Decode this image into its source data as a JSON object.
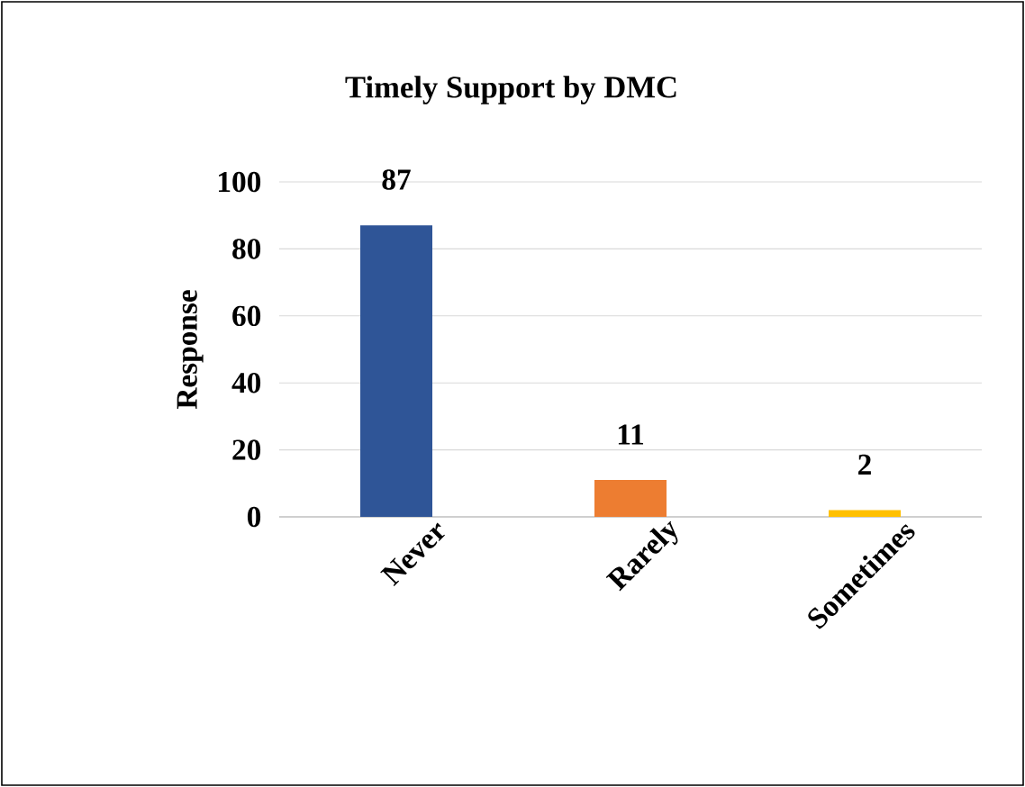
{
  "chart_data": {
    "type": "bar",
    "title": "Timely Support by DMC",
    "ylabel": "Response",
    "categories": [
      "Never",
      "Rarely",
      "Sometimes"
    ],
    "values": [
      87,
      11,
      2
    ],
    "colors": [
      "#2f5597",
      "#ed7d31",
      "#ffc000"
    ],
    "ylim": [
      0,
      100
    ],
    "yticks": [
      0,
      20,
      40,
      60,
      80,
      100
    ],
    "grid": "y",
    "data_labels": true
  }
}
